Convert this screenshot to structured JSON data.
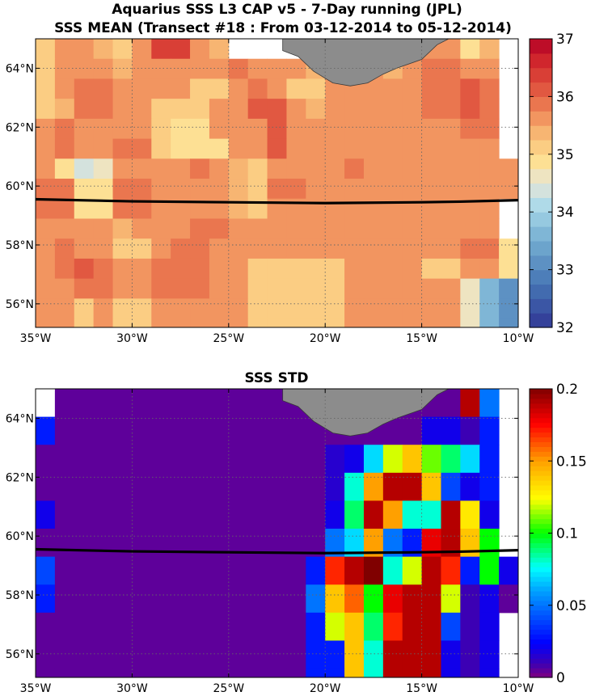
{
  "chart_data": [
    {
      "type": "heatmap",
      "title": "Aquarius SSS L3 CAP v5 - 7-Day running (JPL)",
      "subtitle": "SSS MEAN (Transect #18 : From 03-12-2014 to 05-12-2014)",
      "xlim": [
        -35,
        -10
      ],
      "ylim": [
        55.2,
        65
      ],
      "x_ticks": [
        -35,
        -30,
        -25,
        -20,
        -15,
        -10
      ],
      "x_tick_labels": [
        "35°W",
        "30°W",
        "25°W",
        "20°W",
        "15°W",
        "10°W"
      ],
      "y_ticks": [
        56,
        58,
        60,
        62,
        64
      ],
      "y_tick_labels": [
        "56°N",
        "58°N",
        "60°N",
        "62°N",
        "64°N"
      ],
      "grid": true,
      "colorbar": {
        "colormap": "blue-white-red",
        "range": [
          32,
          37
        ],
        "levels": 20,
        "ticks": [
          32,
          33,
          34,
          35,
          36,
          37
        ]
      },
      "cell_size_deg": {
        "lon": 1,
        "lat": 1
      },
      "cell_origin": {
        "lon": -35,
        "lat": 55.5
      },
      "grid_rows": [
        "northernmost row first, lon -35 to -10",
        "data in rows below"
      ],
      "rows": [
        [
          35.2,
          35.6,
          35.6,
          35.4,
          35.1,
          35.6,
          36.4,
          36.3,
          35.7,
          35.4,
          null,
          null,
          null,
          null,
          null,
          null,
          null,
          null,
          null,
          null,
          35.7,
          35.7,
          34.9,
          35.3,
          null
        ],
        [
          35.1,
          35.5,
          35.6,
          35.6,
          35.4,
          35.6,
          35.6,
          35.6,
          35.6,
          35.6,
          35.8,
          35.7,
          35.6,
          35.5,
          35.4,
          35.2,
          35.6,
          35.5,
          35.3,
          35.5,
          35.9,
          35.9,
          35.6,
          35.6,
          null
        ],
        [
          35.0,
          35.6,
          35.9,
          35.9,
          35.7,
          35.6,
          35.6,
          35.6,
          35.1,
          35.1,
          35.6,
          35.9,
          35.6,
          35.1,
          35.0,
          35.6,
          35.6,
          35.6,
          35.6,
          35.6,
          35.9,
          35.9,
          36.1,
          35.9,
          null
        ],
        [
          35.0,
          35.4,
          35.9,
          35.9,
          35.6,
          35.6,
          35.1,
          35.0,
          35.0,
          35.6,
          35.7,
          36.1,
          36.1,
          35.6,
          35.3,
          35.6,
          35.6,
          35.6,
          35.6,
          35.6,
          35.9,
          35.9,
          36.0,
          35.9,
          null
        ],
        [
          35.6,
          35.8,
          35.6,
          35.6,
          35.6,
          35.6,
          35.0,
          34.9,
          34.9,
          35.6,
          35.7,
          35.6,
          36.0,
          35.6,
          35.6,
          35.6,
          35.6,
          35.6,
          35.6,
          35.6,
          35.6,
          35.6,
          35.9,
          35.9,
          null
        ],
        [
          35.6,
          35.8,
          35.6,
          35.6,
          35.9,
          35.9,
          35.0,
          34.9,
          34.9,
          34.8,
          35.6,
          35.6,
          36.0,
          35.6,
          35.6,
          35.6,
          35.6,
          35.6,
          35.6,
          35.6,
          35.6,
          35.6,
          35.6,
          35.6,
          null
        ],
        [
          35.6,
          34.8,
          34.3,
          34.6,
          35.6,
          35.6,
          35.6,
          35.6,
          35.9,
          35.5,
          35.3,
          35.2,
          35.6,
          35.6,
          35.7,
          35.7,
          35.9,
          35.6,
          35.6,
          35.6,
          35.6,
          35.6,
          35.6,
          35.6,
          35.7
        ],
        [
          35.8,
          35.8,
          34.8,
          34.8,
          35.8,
          35.8,
          35.7,
          35.6,
          35.6,
          35.6,
          35.3,
          35.2,
          35.8,
          35.8,
          35.6,
          35.6,
          35.6,
          35.6,
          35.6,
          35.6,
          35.6,
          35.6,
          35.6,
          35.6,
          35.6
        ],
        [
          35.8,
          35.8,
          34.8,
          34.8,
          35.8,
          35.8,
          35.7,
          35.6,
          35.6,
          35.6,
          35.3,
          35.2,
          35.6,
          35.6,
          35.6,
          35.6,
          35.6,
          35.6,
          35.6,
          35.6,
          35.6,
          35.6,
          35.6,
          35.6,
          null
        ],
        [
          35.6,
          35.6,
          35.6,
          35.6,
          35.3,
          35.6,
          35.6,
          35.6,
          35.9,
          35.9,
          35.6,
          35.5,
          35.6,
          35.6,
          35.5,
          35.5,
          35.5,
          35.6,
          35.6,
          35.6,
          35.6,
          35.6,
          35.6,
          35.6,
          null
        ],
        [
          35.6,
          35.9,
          35.6,
          35.6,
          35.2,
          35.2,
          35.6,
          35.9,
          35.9,
          35.6,
          35.6,
          35.5,
          35.5,
          35.6,
          35.5,
          35.5,
          35.5,
          35.6,
          35.6,
          35.6,
          35.6,
          35.6,
          35.9,
          35.9,
          34.8
        ],
        [
          35.6,
          35.9,
          36.1,
          35.9,
          35.6,
          35.6,
          35.9,
          35.9,
          35.9,
          35.6,
          35.6,
          35.2,
          35.2,
          35.2,
          35.2,
          35.2,
          35.6,
          35.6,
          35.6,
          35.6,
          35.2,
          35.2,
          35.6,
          35.6,
          34.8
        ],
        [
          35.6,
          35.6,
          35.9,
          35.8,
          35.7,
          35.7,
          35.9,
          35.9,
          35.9,
          35.6,
          35.6,
          35.2,
          35.2,
          35.2,
          35.2,
          35.2,
          35.6,
          35.6,
          35.6,
          35.6,
          35.6,
          35.6,
          34.7,
          33.5,
          33.2
        ],
        [
          35.6,
          35.6,
          35.1,
          35.6,
          35.1,
          35.1,
          35.6,
          35.6,
          35.6,
          35.6,
          35.6,
          35.2,
          35.2,
          35.2,
          35.2,
          35.2,
          35.6,
          35.6,
          35.6,
          35.6,
          35.6,
          35.6,
          34.7,
          33.5,
          33.2
        ]
      ],
      "transect": [
        [
          -35,
          59.55
        ],
        [
          -30,
          59.48
        ],
        [
          -25,
          59.45
        ],
        [
          -20,
          59.42
        ],
        [
          -15,
          59.45
        ],
        [
          -13,
          59.47
        ],
        [
          -10,
          59.52
        ]
      ]
    },
    {
      "type": "heatmap",
      "title": "SSS STD",
      "xlim": [
        -35,
        -10
      ],
      "ylim": [
        55.2,
        65
      ],
      "x_ticks": [
        -35,
        -30,
        -25,
        -20,
        -15,
        -10
      ],
      "x_tick_labels": [
        "35°W",
        "30°W",
        "25°W",
        "20°W",
        "15°W",
        "10°W"
      ],
      "y_ticks": [
        56,
        58,
        60,
        62,
        64
      ],
      "y_tick_labels": [
        "56°N",
        "58°N",
        "60°N",
        "62°N",
        "64°N"
      ],
      "grid": true,
      "colorbar": {
        "colormap": "jet",
        "range": [
          0,
          0.2
        ],
        "ticks": [
          0,
          0.05,
          0.1,
          0.15,
          0.2
        ],
        "tick_labels": [
          "0",
          "0.05",
          "0.1",
          "0.15",
          "0.2"
        ]
      },
      "rows": [
        [
          null,
          0.005,
          0.005,
          0.005,
          0.005,
          0.005,
          0.005,
          0.005,
          0.005,
          0.005,
          0.005,
          0.005,
          0.005,
          0.005,
          0.005,
          0.005,
          0.005,
          0.005,
          0.005,
          0.005,
          0.005,
          0.005,
          0.19,
          0.05,
          null
        ],
        [
          0.03,
          0.005,
          0.005,
          0.005,
          0.005,
          0.005,
          0.005,
          0.005,
          0.005,
          0.005,
          0.005,
          0.005,
          0.005,
          0.005,
          0.005,
          0.005,
          0.005,
          0.005,
          0.005,
          0.005,
          0.02,
          0.02,
          0.01,
          0.03,
          null
        ],
        [
          0.005,
          0.005,
          0.005,
          0.005,
          0.005,
          0.005,
          0.005,
          0.005,
          0.005,
          0.005,
          0.005,
          0.005,
          0.005,
          0.005,
          0.005,
          0.015,
          0.02,
          0.07,
          0.12,
          0.14,
          0.11,
          0.09,
          0.07,
          0.03,
          null
        ],
        [
          0.005,
          0.005,
          0.005,
          0.005,
          0.005,
          0.005,
          0.005,
          0.005,
          0.005,
          0.005,
          0.005,
          0.005,
          0.005,
          0.005,
          0.005,
          0.015,
          0.08,
          0.15,
          0.19,
          0.19,
          0.14,
          0.04,
          0.02,
          0.03,
          null
        ],
        [
          0.02,
          0.005,
          0.005,
          0.005,
          0.005,
          0.005,
          0.005,
          0.005,
          0.005,
          0.005,
          0.005,
          0.005,
          0.005,
          0.005,
          0.005,
          0.02,
          0.09,
          0.19,
          0.15,
          0.08,
          0.08,
          0.19,
          0.13,
          0.02,
          null
        ],
        [
          0.005,
          0.005,
          0.005,
          0.005,
          0.005,
          0.005,
          0.005,
          0.005,
          0.005,
          0.005,
          0.005,
          0.005,
          0.005,
          0.005,
          0.005,
          0.05,
          0.07,
          0.15,
          0.05,
          0.03,
          0.18,
          0.19,
          0.14,
          0.1,
          null
        ],
        [
          0.04,
          0.005,
          0.005,
          0.005,
          0.005,
          0.005,
          0.005,
          0.005,
          0.005,
          0.005,
          0.005,
          0.005,
          0.005,
          0.005,
          0.03,
          0.17,
          0.19,
          0.2,
          0.08,
          0.12,
          0.19,
          0.17,
          0.03,
          0.1,
          0.02
        ],
        [
          0.03,
          0.005,
          0.005,
          0.005,
          0.005,
          0.005,
          0.005,
          0.005,
          0.005,
          0.005,
          0.005,
          0.005,
          0.005,
          0.005,
          0.05,
          0.14,
          0.16,
          0.1,
          0.18,
          0.19,
          0.19,
          0.12,
          0.01,
          0.02,
          0.005
        ],
        [
          0.005,
          0.005,
          0.005,
          0.005,
          0.005,
          0.005,
          0.005,
          0.005,
          0.005,
          0.005,
          0.005,
          0.005,
          0.005,
          0.005,
          0.03,
          0.12,
          0.14,
          0.09,
          0.17,
          0.19,
          0.19,
          0.04,
          0.01,
          0.02,
          null
        ],
        [
          0.005,
          0.005,
          0.005,
          0.005,
          0.005,
          0.005,
          0.005,
          0.005,
          0.005,
          0.005,
          0.005,
          0.005,
          0.005,
          0.005,
          0.03,
          0.03,
          0.14,
          0.08,
          0.19,
          0.19,
          0.19,
          0.02,
          0.01,
          0.02,
          null
        ]
      ],
      "transect": [
        [
          -35,
          59.55
        ],
        [
          -30,
          59.48
        ],
        [
          -25,
          59.45
        ],
        [
          -20,
          59.42
        ],
        [
          -15,
          59.45
        ],
        [
          -13,
          59.47
        ],
        [
          -10,
          59.52
        ]
      ]
    }
  ]
}
